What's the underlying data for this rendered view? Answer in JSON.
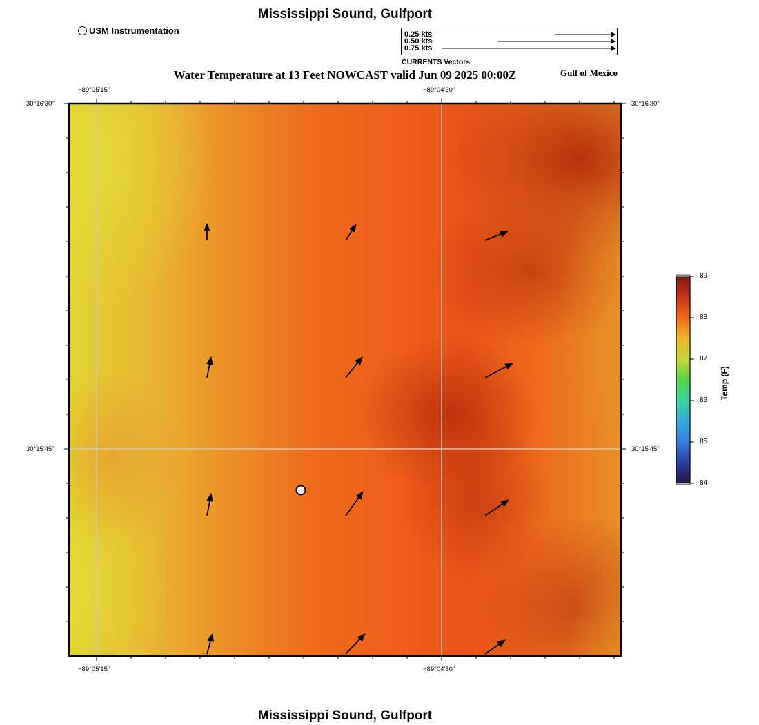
{
  "title": "Mississippi Sound, Gulfport",
  "subtitle": "Water Temperature at 13 Feet NOWCAST valid Jun 09 2025 00:00Z",
  "region_label": "Gulf of Mexico",
  "footer_title": "Mississippi Sound, Gulfport",
  "legend": {
    "station_label": "USM Instrumentation",
    "vector_scale": [
      "0.25 kts",
      "0.50 kts",
      "0.75 kts"
    ],
    "vector_caption": "CURRENTS Vectors"
  },
  "axes": {
    "lon_ticks": [
      "−89°05'15\"",
      "−89°04'30\""
    ],
    "lat_ticks": [
      "30°16'30\"",
      "30°15'45\""
    ]
  },
  "colorbar": {
    "title": "Temp (F)",
    "min": 84,
    "max": 89,
    "ticks": [
      "89",
      "88",
      "87",
      "86",
      "85",
      "84"
    ]
  },
  "colors": {
    "warm_yellow": "#e2d535",
    "orange": "#f0621a",
    "dark_red": "#c0330f"
  }
}
